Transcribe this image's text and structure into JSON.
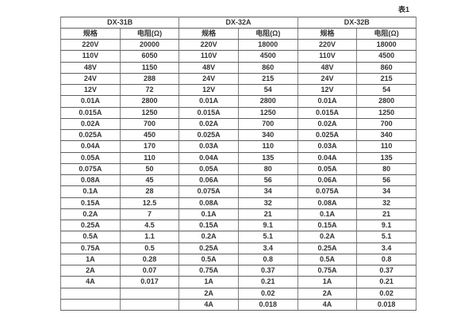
{
  "caption": "表1",
  "table": {
    "groups": [
      {
        "name": "DX-31B",
        "headers": [
          "规格",
          "电阻(Ω)"
        ],
        "rows": [
          [
            "220V",
            "20000"
          ],
          [
            "110V",
            "6050"
          ],
          [
            "48V",
            "1150"
          ],
          [
            "24V",
            "288"
          ],
          [
            "12V",
            "72"
          ],
          [
            "0.01A",
            "2800"
          ],
          [
            "0.015A",
            "1250"
          ],
          [
            "0.02A",
            "700"
          ],
          [
            "0.025A",
            "450"
          ],
          [
            "0.04A",
            "170"
          ],
          [
            "0.05A",
            "110"
          ],
          [
            "0.075A",
            "50"
          ],
          [
            "0.08A",
            "45"
          ],
          [
            "0.1A",
            "28"
          ],
          [
            "0.15A",
            "12.5"
          ],
          [
            "0.2A",
            "7"
          ],
          [
            "0.25A",
            "4.5"
          ],
          [
            "0.5A",
            "1.1"
          ],
          [
            "0.75A",
            "0.5"
          ],
          [
            "1A",
            "0.28"
          ],
          [
            "2A",
            "0.07"
          ],
          [
            "4A",
            "0.017"
          ],
          [
            "",
            ""
          ],
          [
            "",
            ""
          ]
        ]
      },
      {
        "name": "DX-32A",
        "headers": [
          "规格",
          "电阻(Ω)"
        ],
        "rows": [
          [
            "220V",
            "18000"
          ],
          [
            "110V",
            "4500"
          ],
          [
            "48V",
            "860"
          ],
          [
            "24V",
            "215"
          ],
          [
            "12V",
            "54"
          ],
          [
            "0.01A",
            "2800"
          ],
          [
            "0.015A",
            "1250"
          ],
          [
            "0.02A",
            "700"
          ],
          [
            "0.025A",
            "340"
          ],
          [
            "0.03A",
            "110"
          ],
          [
            "0.04A",
            "135"
          ],
          [
            "0.05A",
            "80"
          ],
          [
            "0.06A",
            "56"
          ],
          [
            "0.075A",
            "34"
          ],
          [
            "0.08A",
            "32"
          ],
          [
            "0.1A",
            "21"
          ],
          [
            "0.15A",
            "9.1"
          ],
          [
            "0.2A",
            "5.1"
          ],
          [
            "0.25A",
            "3.4"
          ],
          [
            "0.5A",
            "0.8"
          ],
          [
            "0.75A",
            "0.37"
          ],
          [
            "1A",
            "0.21"
          ],
          [
            "2A",
            "0.02"
          ],
          [
            "4A",
            "0.018"
          ]
        ]
      },
      {
        "name": "DX-32B",
        "headers": [
          "规格",
          "电阻(Ω)"
        ],
        "rows": [
          [
            "220V",
            "18000"
          ],
          [
            "110V",
            "4500"
          ],
          [
            "48V",
            "860"
          ],
          [
            "24V",
            "215"
          ],
          [
            "12V",
            "54"
          ],
          [
            "0.01A",
            "2800"
          ],
          [
            "0.015A",
            "1250"
          ],
          [
            "0.02A",
            "700"
          ],
          [
            "0.025A",
            "340"
          ],
          [
            "0.03A",
            "110"
          ],
          [
            "0.04A",
            "135"
          ],
          [
            "0.05A",
            "80"
          ],
          [
            "0.06A",
            "56"
          ],
          [
            "0.075A",
            "34"
          ],
          [
            "0.08A",
            "32"
          ],
          [
            "0.1A",
            "21"
          ],
          [
            "0.15A",
            "9.1"
          ],
          [
            "0.2A",
            "5.1"
          ],
          [
            "0.25A",
            "3.4"
          ],
          [
            "0.5A",
            "0.8"
          ],
          [
            "0.75A",
            "0.37"
          ],
          [
            "1A",
            "0.21"
          ],
          [
            "2A",
            "0.02"
          ],
          [
            "4A",
            "0.018"
          ]
        ]
      }
    ]
  }
}
